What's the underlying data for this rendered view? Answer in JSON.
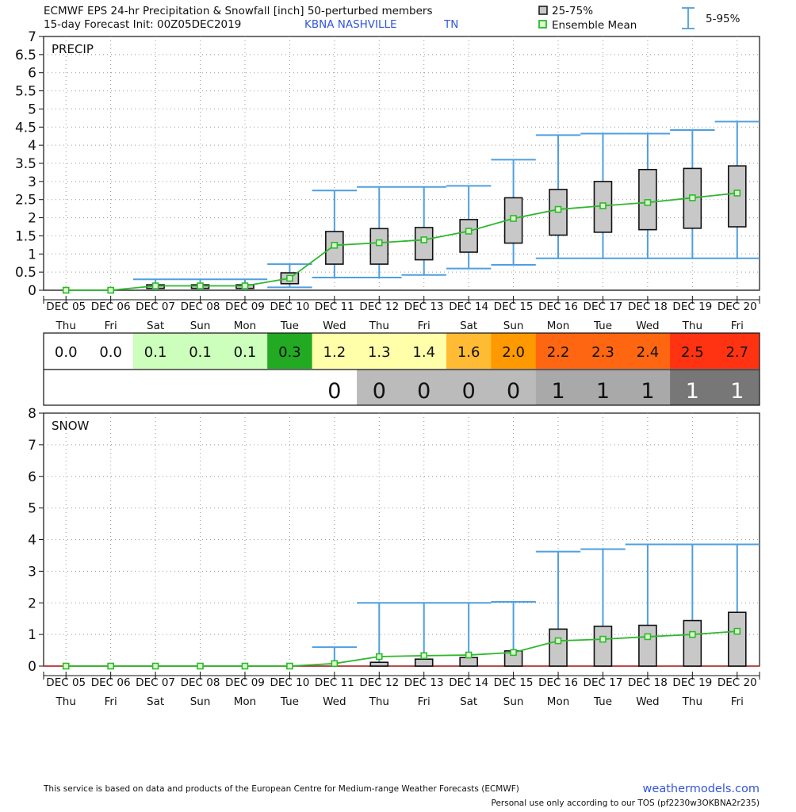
{
  "header": {
    "line1": "ECMWF EPS 24-hr Precipitation & Snowfall [inch]  50-perturbed members",
    "line2_prefix": "15-day Forecast Init: 00Z05DEC2019",
    "station": "KBNA  NASHVILLE",
    "state": "TN"
  },
  "legend": {
    "box": "25-75%",
    "mean": "Ensemble Mean",
    "whisker": "5-95%"
  },
  "footer": {
    "disclaimer": "This service is based on data and products of the European Centre for Medium-range Weather Forecasts (ECMWF)",
    "site": "weathermodels.com",
    "tos": "Personal use only according to our TOS (pf2230w3OKBNA2r235)"
  },
  "colors": {
    "whisker": "#4f9fe0",
    "mean": "#2eb82e",
    "mean_marker_fill": "#ddffcc",
    "box_fill": "#c8c8c8",
    "grid": "#999999"
  },
  "chart_data": [
    {
      "type": "box",
      "title": "PRECIP",
      "ylim": [
        0,
        7
      ],
      "yticks": [
        "0",
        "0.5",
        "1",
        "1.5",
        "2",
        "2.5",
        "3",
        "3.5",
        "4",
        "4.5",
        "5",
        "5.5",
        "6",
        "6.5",
        "7"
      ],
      "categories": [
        "DEC 05",
        "DEC 06",
        "DEC 07",
        "DEC 08",
        "DEC 09",
        "DEC 10",
        "DEC 11",
        "DEC 12",
        "DEC 13",
        "DEC 14",
        "DEC 15",
        "DEC 16",
        "DEC 17",
        "DEC 18",
        "DEC 19",
        "DEC 20"
      ],
      "weekdays": [
        "Thu",
        "Fri",
        "Sat",
        "Sun",
        "Mon",
        "Tue",
        "Wed",
        "Thu",
        "Fri",
        "Sat",
        "Sun",
        "Mon",
        "Tue",
        "Wed",
        "Thu",
        "Fri"
      ],
      "grid": true,
      "series": [
        {
          "name": "Ensemble Mean",
          "values": [
            0.0,
            0.0,
            0.12,
            0.12,
            0.12,
            0.33,
            1.24,
            1.31,
            1.39,
            1.63,
            1.98,
            2.23,
            2.33,
            2.42,
            2.55,
            2.68
          ]
        },
        {
          "name": "25-75%",
          "low": [
            null,
            null,
            0.05,
            0.05,
            0.05,
            0.18,
            0.72,
            0.72,
            0.84,
            1.05,
            1.3,
            1.52,
            1.6,
            1.67,
            1.71,
            1.75
          ],
          "high": [
            null,
            null,
            0.15,
            0.15,
            0.15,
            0.48,
            1.62,
            1.7,
            1.73,
            1.95,
            2.55,
            2.78,
            3.0,
            3.33,
            3.36,
            3.43
          ]
        },
        {
          "name": "5-95%",
          "low": [
            null,
            null,
            0.0,
            0.0,
            0.0,
            0.08,
            0.35,
            0.35,
            0.42,
            0.6,
            0.7,
            0.88,
            0.88,
            0.88,
            0.88,
            0.88
          ],
          "high": [
            null,
            null,
            0.3,
            0.3,
            0.3,
            0.72,
            2.75,
            2.85,
            2.85,
            2.88,
            3.6,
            4.28,
            4.32,
            4.32,
            4.42,
            4.65
          ]
        }
      ]
    },
    {
      "type": "table",
      "rows": [
        {
          "values": [
            "0.0",
            "0.0",
            "0.1",
            "0.1",
            "0.1",
            "0.3",
            "1.2",
            "1.3",
            "1.4",
            "1.6",
            "2.0",
            "2.2",
            "2.3",
            "2.4",
            "2.5",
            "2.7"
          ],
          "fills": [
            "#ffffff",
            "#ffffff",
            "#ccffbb",
            "#ccffbb",
            "#ccffbb",
            "#22aa22",
            "#ffffaa",
            "#ffffaa",
            "#ffffaa",
            "#ffbb33",
            "#ff9900",
            "#ff6611",
            "#ff6611",
            "#ff6611",
            "#ff3311",
            "#ff3311"
          ],
          "text_colors": [
            "#111111",
            "#111111",
            "#111111",
            "#111111",
            "#111111",
            "#111111",
            "#111111",
            "#111111",
            "#111111",
            "#111111",
            "#111111",
            "#111111",
            "#111111",
            "#111111",
            "#111111",
            "#111111"
          ]
        },
        {
          "values": [
            "",
            "",
            "",
            "",
            "",
            "",
            "0",
            "0",
            "0",
            "0",
            "0",
            "1",
            "1",
            "1",
            "1",
            "1"
          ],
          "fills": [
            "#ffffff",
            "#ffffff",
            "#ffffff",
            "#ffffff",
            "#ffffff",
            "#ffffff",
            "#ffffff",
            "#bbbbbb",
            "#bbbbbb",
            "#bbbbbb",
            "#bbbbbb",
            "#a9a9a9",
            "#a9a9a9",
            "#a9a9a9",
            "#777777",
            "#777777"
          ],
          "text_colors": [
            "#111111",
            "#111111",
            "#111111",
            "#111111",
            "#111111",
            "#111111",
            "#111111",
            "#111111",
            "#111111",
            "#111111",
            "#111111",
            "#111111",
            "#111111",
            "#111111",
            "#ffffff",
            "#ffffff"
          ]
        }
      ]
    },
    {
      "type": "box",
      "title": "SNOW",
      "ylim": [
        0,
        8
      ],
      "yticks": [
        "0",
        "1",
        "2",
        "3",
        "4",
        "5",
        "6",
        "7",
        "8"
      ],
      "categories": [
        "DEC 05",
        "DEC 06",
        "DEC 07",
        "DEC 08",
        "DEC 09",
        "DEC 10",
        "DEC 11",
        "DEC 12",
        "DEC 13",
        "DEC 14",
        "DEC 15",
        "DEC 16",
        "DEC 17",
        "DEC 18",
        "DEC 19",
        "DEC 20"
      ],
      "weekdays": [
        "Thu",
        "Fri",
        "Sat",
        "Sun",
        "Mon",
        "Tue",
        "Wed",
        "Thu",
        "Fri",
        "Sat",
        "Sun",
        "Mon",
        "Tue",
        "Wed",
        "Thu",
        "Fri"
      ],
      "grid": true,
      "series": [
        {
          "name": "Ensemble Mean",
          "values": [
            0.0,
            0.0,
            0.0,
            0.0,
            0.0,
            0.0,
            0.08,
            0.3,
            0.33,
            0.35,
            0.43,
            0.8,
            0.85,
            0.93,
            1.0,
            1.1
          ]
        },
        {
          "name": "25-75%",
          "low": [
            null,
            null,
            null,
            null,
            null,
            null,
            0.0,
            0.0,
            0.0,
            0.0,
            0.0,
            0.0,
            0.0,
            0.0,
            0.0,
            0.0
          ],
          "high": [
            null,
            null,
            null,
            null,
            null,
            null,
            0.0,
            0.12,
            0.22,
            0.27,
            0.48,
            1.17,
            1.26,
            1.29,
            1.44,
            1.7
          ]
        },
        {
          "name": "5-95%",
          "low": [
            null,
            null,
            null,
            null,
            null,
            null,
            0.0,
            0.0,
            0.0,
            0.0,
            0.0,
            0.0,
            0.0,
            0.0,
            0.0,
            0.0
          ],
          "high": [
            null,
            null,
            null,
            null,
            null,
            null,
            0.6,
            2.0,
            2.0,
            2.0,
            2.03,
            3.62,
            3.7,
            3.85,
            3.85,
            3.85
          ]
        }
      ]
    }
  ]
}
